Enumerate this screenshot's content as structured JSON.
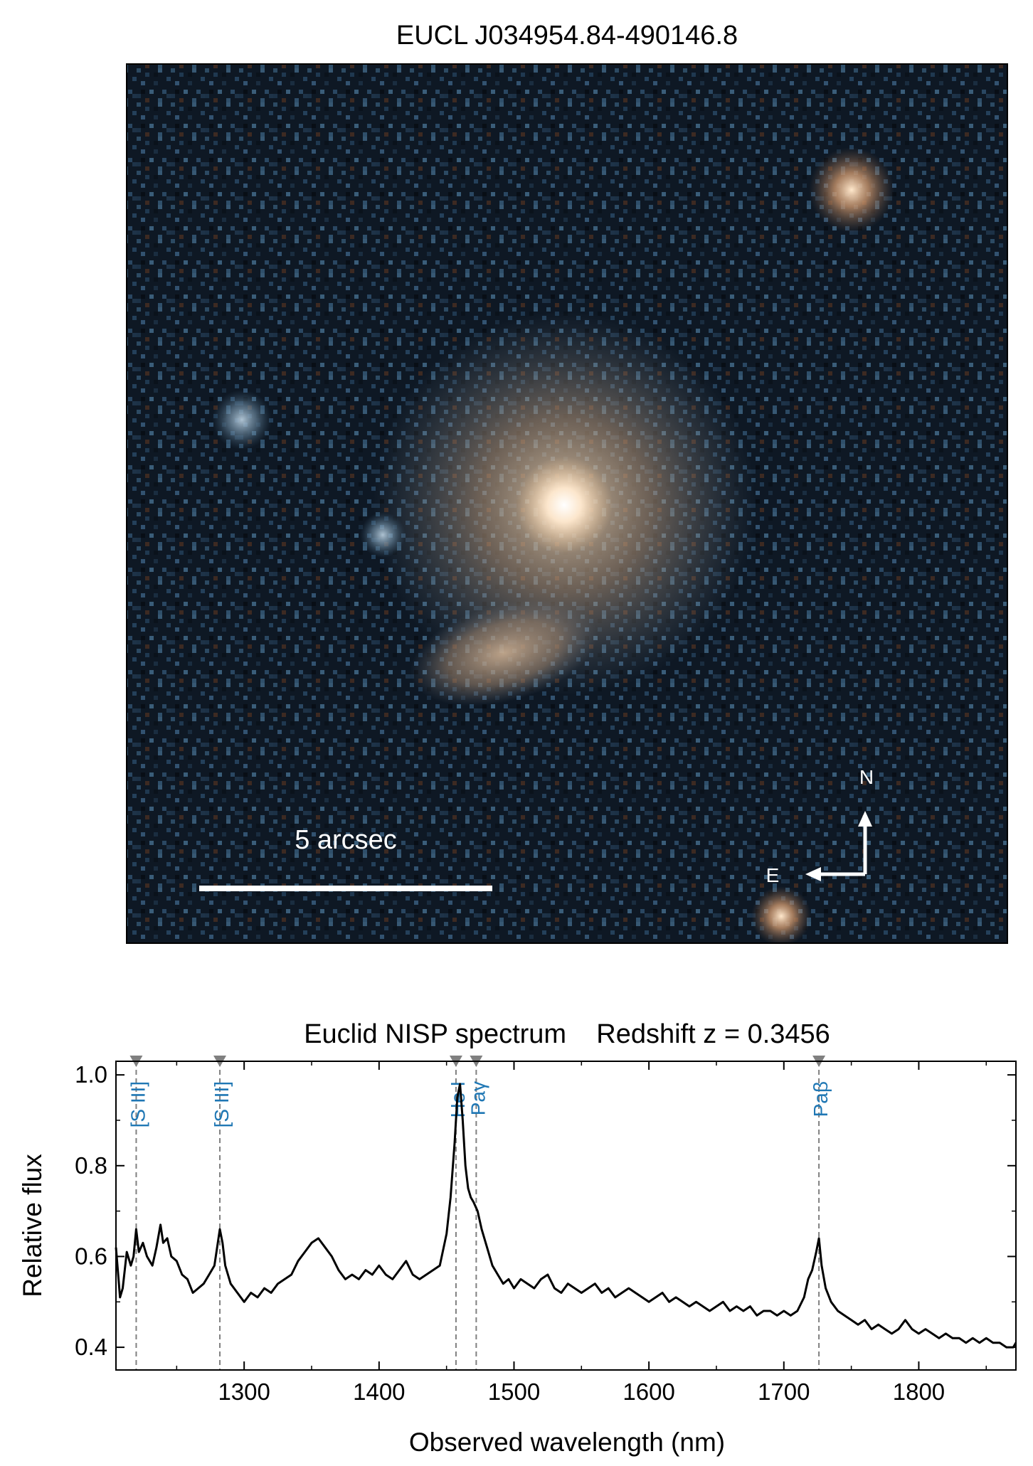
{
  "image_panel": {
    "title": "EUCL J034954.84-490146.8",
    "scale_bar_label": "5 arcsec",
    "compass": {
      "north": "N",
      "east": "E"
    }
  },
  "chart_data": {
    "type": "line",
    "title": "Euclid NISP spectrum    Redshift z = 0.3456",
    "xlabel": "Observed wavelength (nm)",
    "ylabel": "Relative flux",
    "xlim": [
      1205,
      1872
    ],
    "ylim": [
      0.35,
      1.03
    ],
    "xticks": [
      1300,
      1400,
      1500,
      1600,
      1700,
      1800
    ],
    "xtick_labels": [
      "1300",
      "1400",
      "1500",
      "1600",
      "1700",
      "1800"
    ],
    "yticks": [
      0.4,
      0.6,
      0.8,
      1.0
    ],
    "ytick_labels": [
      "0.4",
      "0.6",
      "0.8",
      "1.0"
    ],
    "grid": false,
    "line_color": "#000000",
    "marker_color": "#808080",
    "label_color": "#1f77b4",
    "lines": [
      {
        "x": 1220,
        "label": "[S III]"
      },
      {
        "x": 1282,
        "label": "[S III]"
      },
      {
        "x": 1457,
        "label": "He I"
      },
      {
        "x": 1472,
        "label": "Paγ"
      },
      {
        "x": 1726,
        "label": "Paβ"
      }
    ],
    "spectrum": {
      "x": [
        1205,
        1208,
        1210,
        1213,
        1216,
        1218,
        1220,
        1222,
        1225,
        1228,
        1232,
        1235,
        1238,
        1240,
        1243,
        1246,
        1250,
        1254,
        1258,
        1262,
        1266,
        1270,
        1274,
        1278,
        1280,
        1282,
        1284,
        1286,
        1290,
        1295,
        1300,
        1305,
        1310,
        1315,
        1320,
        1325,
        1330,
        1335,
        1340,
        1345,
        1350,
        1355,
        1360,
        1365,
        1370,
        1375,
        1380,
        1385,
        1390,
        1395,
        1400,
        1405,
        1410,
        1415,
        1420,
        1425,
        1430,
        1435,
        1440,
        1445,
        1450,
        1453,
        1456,
        1458,
        1460,
        1462,
        1464,
        1466,
        1468,
        1470,
        1473,
        1476,
        1480,
        1484,
        1488,
        1492,
        1496,
        1500,
        1505,
        1510,
        1515,
        1520,
        1525,
        1530,
        1535,
        1540,
        1545,
        1550,
        1555,
        1560,
        1565,
        1570,
        1575,
        1580,
        1585,
        1590,
        1595,
        1600,
        1605,
        1610,
        1615,
        1620,
        1625,
        1630,
        1635,
        1640,
        1645,
        1650,
        1655,
        1660,
        1665,
        1670,
        1675,
        1680,
        1685,
        1690,
        1695,
        1700,
        1705,
        1710,
        1715,
        1718,
        1721,
        1724,
        1726,
        1728,
        1731,
        1735,
        1740,
        1745,
        1750,
        1755,
        1760,
        1765,
        1770,
        1775,
        1780,
        1785,
        1790,
        1795,
        1800,
        1805,
        1810,
        1815,
        1820,
        1825,
        1830,
        1835,
        1840,
        1845,
        1850,
        1855,
        1860,
        1865,
        1870,
        1872
      ],
      "y": [
        0.62,
        0.51,
        0.53,
        0.61,
        0.58,
        0.6,
        0.66,
        0.61,
        0.63,
        0.6,
        0.58,
        0.62,
        0.67,
        0.63,
        0.64,
        0.6,
        0.59,
        0.56,
        0.55,
        0.52,
        0.53,
        0.54,
        0.56,
        0.58,
        0.62,
        0.66,
        0.63,
        0.58,
        0.54,
        0.52,
        0.5,
        0.52,
        0.51,
        0.53,
        0.52,
        0.54,
        0.55,
        0.56,
        0.59,
        0.61,
        0.63,
        0.64,
        0.62,
        0.6,
        0.57,
        0.55,
        0.56,
        0.55,
        0.57,
        0.56,
        0.58,
        0.56,
        0.55,
        0.57,
        0.59,
        0.56,
        0.55,
        0.56,
        0.57,
        0.58,
        0.65,
        0.73,
        0.85,
        0.95,
        0.98,
        0.9,
        0.8,
        0.75,
        0.73,
        0.72,
        0.7,
        0.66,
        0.62,
        0.58,
        0.56,
        0.54,
        0.55,
        0.53,
        0.55,
        0.54,
        0.53,
        0.55,
        0.56,
        0.53,
        0.52,
        0.54,
        0.53,
        0.52,
        0.53,
        0.54,
        0.52,
        0.53,
        0.51,
        0.52,
        0.53,
        0.52,
        0.51,
        0.5,
        0.51,
        0.52,
        0.5,
        0.51,
        0.5,
        0.49,
        0.5,
        0.49,
        0.48,
        0.49,
        0.5,
        0.48,
        0.49,
        0.48,
        0.49,
        0.47,
        0.48,
        0.48,
        0.47,
        0.48,
        0.47,
        0.48,
        0.51,
        0.55,
        0.57,
        0.61,
        0.64,
        0.58,
        0.53,
        0.5,
        0.48,
        0.47,
        0.46,
        0.45,
        0.46,
        0.44,
        0.45,
        0.44,
        0.43,
        0.44,
        0.46,
        0.44,
        0.43,
        0.44,
        0.43,
        0.42,
        0.43,
        0.42,
        0.42,
        0.41,
        0.42,
        0.41,
        0.42,
        0.41,
        0.41,
        0.4,
        0.4,
        0.41
      ]
    }
  }
}
